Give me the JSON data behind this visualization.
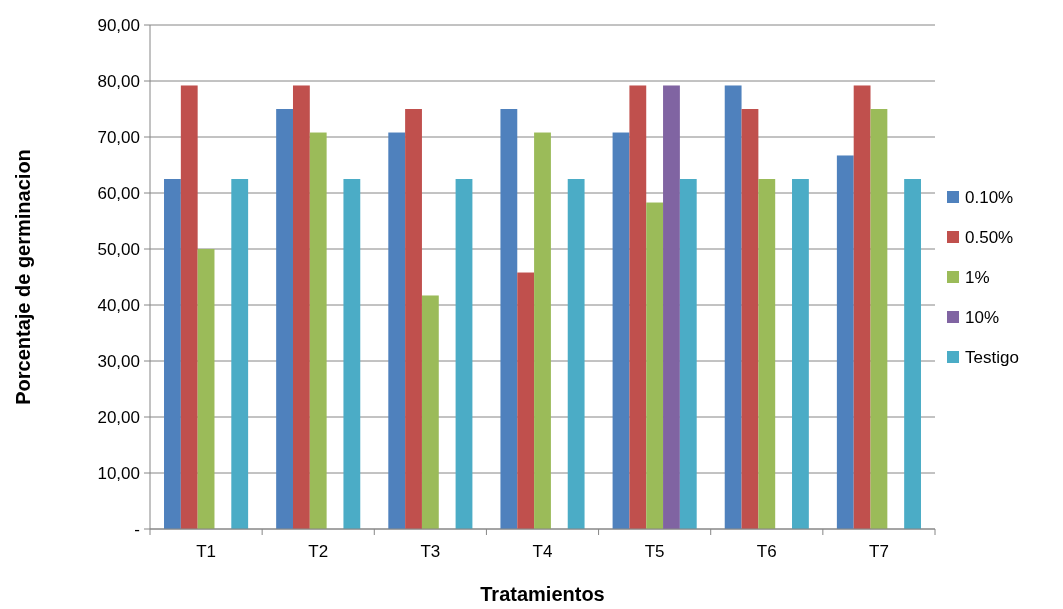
{
  "chart_data": {
    "type": "bar",
    "xlabel": "Tratamientos",
    "ylabel": "Porcentaje de germinacion",
    "categories": [
      "T1",
      "T2",
      "T3",
      "T4",
      "T5",
      "T6",
      "T7"
    ],
    "series": [
      {
        "name": "0.10%",
        "color": "#4f81bd",
        "values": [
          62.5,
          75,
          70.8,
          75,
          70.8,
          79.2,
          66.7
        ]
      },
      {
        "name": "0.50%",
        "color": "#c0504d",
        "values": [
          79.2,
          79.2,
          75,
          45.8,
          79.2,
          75,
          79.2
        ]
      },
      {
        "name": "1%",
        "color": "#9bbb59",
        "values": [
          50,
          70.8,
          41.7,
          70.8,
          58.3,
          62.5,
          75
        ]
      },
      {
        "name": "10%",
        "color": "#8064a2",
        "values": [
          null,
          null,
          null,
          null,
          79.2,
          null,
          null
        ]
      },
      {
        "name": "Testigo",
        "color": "#4bacc6",
        "values": [
          62.5,
          62.5,
          62.5,
          62.5,
          62.5,
          62.5,
          62.5
        ]
      }
    ],
    "ylim": [
      0,
      90
    ],
    "yticks": [
      {
        "value": 0,
        "label": "-"
      },
      {
        "value": 10,
        "label": "10,00"
      },
      {
        "value": 20,
        "label": "20,00"
      },
      {
        "value": 30,
        "label": "30,00"
      },
      {
        "value": 40,
        "label": "40,00"
      },
      {
        "value": 50,
        "label": "50,00"
      },
      {
        "value": 60,
        "label": "60,00"
      },
      {
        "value": 70,
        "label": "70,00"
      },
      {
        "value": 80,
        "label": "80,00"
      },
      {
        "value": 90,
        "label": "90,00"
      }
    ],
    "grid": "y",
    "legend": "right"
  }
}
